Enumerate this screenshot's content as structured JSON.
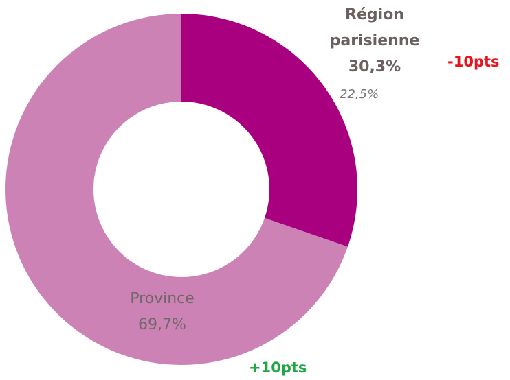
{
  "chart_data": {
    "type": "donut",
    "categories": [
      "Région parisienne",
      "Province"
    ],
    "values": [
      30.3,
      69.7
    ],
    "value_labels": [
      "30,3%",
      "69,7%"
    ],
    "colors": [
      "#a8007f",
      "#cc82b4"
    ],
    "annotations": [
      "22,5%",
      "-10pts",
      "+10pts"
    ]
  }
}
